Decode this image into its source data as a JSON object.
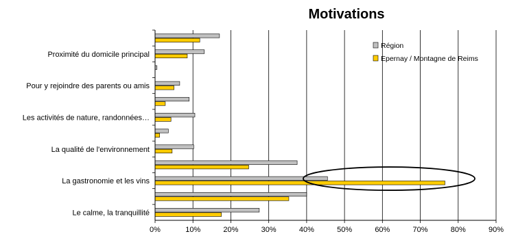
{
  "chart_data": {
    "type": "bar",
    "orientation": "horizontal",
    "title": "Motivations",
    "xlim": [
      0,
      90
    ],
    "x_ticks": [
      "0%",
      "10%",
      "20%",
      "30%",
      "40%",
      "50%",
      "60%",
      "70%",
      "80%",
      "90%"
    ],
    "grid": true,
    "legend_position": "top-right",
    "categories": [
      "",
      "Proximité du domicile principal",
      "",
      "Pour y rejoindre des parents ou amis",
      "",
      "Les activités de nature, randonnées…",
      "",
      "La qualité de l'environnement",
      "",
      "La gastronomie et les vins",
      "",
      "Le calme, la tranquillité"
    ],
    "series": [
      {
        "name": "Région",
        "color": "#c0c0c0",
        "values": [
          17,
          13,
          0.5,
          6.5,
          9,
          10.5,
          3.5,
          10.2,
          37.5,
          45.5,
          40,
          27.5
        ]
      },
      {
        "name": "Epernay / Montagne de Reims",
        "color": "#ffcc00",
        "values": [
          11.8,
          8.5,
          0,
          5,
          2.7,
          4.2,
          1.2,
          4.5,
          24.7,
          76.5,
          35.3,
          17.5
        ]
      }
    ],
    "annotation": {
      "shape": "ellipse",
      "category": "La gastronomie et les vins",
      "series": "Epernay / Montagne de Reims"
    }
  }
}
